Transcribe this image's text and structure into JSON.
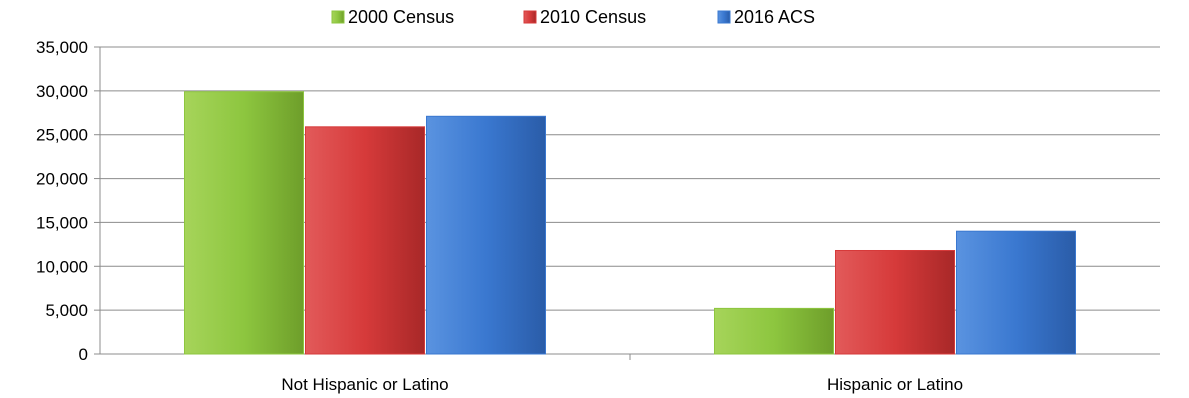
{
  "chart_data": {
    "type": "bar",
    "categories": [
      "Not Hispanic or Latino",
      "Hispanic or Latino"
    ],
    "series": [
      {
        "name": "2000 Census",
        "values": [
          29900,
          5200
        ],
        "color": "#8dc63f"
      },
      {
        "name": "2010 Census",
        "values": [
          25900,
          11800
        ],
        "color": "#d63a3a"
      },
      {
        "name": "2016 ACS",
        "values": [
          27100,
          14000
        ],
        "color": "#3a78d0"
      }
    ],
    "yticks": [
      "0",
      "5,000",
      "10,000",
      "15,000",
      "20,000",
      "25,000",
      "30,000",
      "35,000"
    ],
    "ylim": [
      0,
      35000
    ],
    "grid": true,
    "legend_position": "top"
  }
}
